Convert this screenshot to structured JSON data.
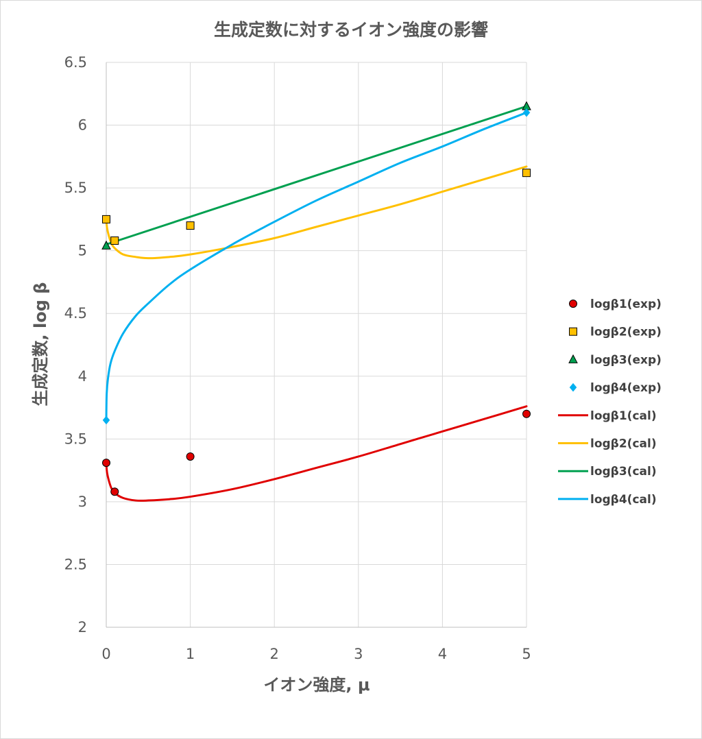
{
  "chart_data": {
    "type": "scatter",
    "title": "生成定数に対するイオン強度の影響",
    "xlabel": "イオン強度, μ",
    "ylabel": "生成定数, log β",
    "xlim": [
      0,
      5
    ],
    "ylim": [
      2,
      6.5
    ],
    "xticks": [
      "0",
      "1",
      "2",
      "3",
      "4",
      "5"
    ],
    "yticks": [
      "2",
      "2.5",
      "3",
      "3.5",
      "4",
      "4.5",
      "5",
      "5.5",
      "6",
      "6.5"
    ],
    "grid": true,
    "legend_position": "right",
    "series": [
      {
        "name": "logβ1(exp)",
        "kind": "marker",
        "marker": "circle",
        "color": "#e00000",
        "x": [
          0,
          0.1,
          1,
          5
        ],
        "y": [
          3.31,
          3.08,
          3.36,
          3.7
        ]
      },
      {
        "name": "logβ2(exp)",
        "kind": "marker",
        "marker": "square",
        "color": "#ffc000",
        "x": [
          0,
          0.1,
          1,
          5
        ],
        "y": [
          5.25,
          5.08,
          5.2,
          5.62
        ]
      },
      {
        "name": "logβ3(exp)",
        "kind": "marker",
        "marker": "triangle",
        "color": "#00a050",
        "x": [
          0,
          5
        ],
        "y": [
          5.04,
          6.15
        ]
      },
      {
        "name": "logβ4(exp)",
        "kind": "marker",
        "marker": "diamond",
        "color": "#00b0f0",
        "x": [
          0,
          5
        ],
        "y": [
          3.65,
          6.1
        ]
      },
      {
        "name": "logβ1(cal)",
        "kind": "line",
        "color": "#e00000",
        "x": [
          0,
          0.01,
          0.03,
          0.06,
          0.1,
          0.2,
          0.35,
          0.5,
          0.75,
          1,
          1.5,
          2,
          2.5,
          3,
          3.5,
          4,
          4.5,
          5
        ],
        "y": [
          3.3,
          3.23,
          3.17,
          3.11,
          3.07,
          3.03,
          3.01,
          3.01,
          3.02,
          3.04,
          3.1,
          3.18,
          3.27,
          3.36,
          3.46,
          3.56,
          3.66,
          3.76
        ]
      },
      {
        "name": "logβ2(cal)",
        "kind": "line",
        "color": "#ffc000",
        "x": [
          0,
          0.01,
          0.03,
          0.06,
          0.1,
          0.2,
          0.35,
          0.5,
          0.75,
          1,
          1.5,
          2,
          2.5,
          3,
          3.5,
          4,
          4.5,
          5
        ],
        "y": [
          5.24,
          5.18,
          5.12,
          5.06,
          5.02,
          4.97,
          4.95,
          4.94,
          4.95,
          4.97,
          5.03,
          5.1,
          5.19,
          5.28,
          5.37,
          5.47,
          5.57,
          5.67
        ]
      },
      {
        "name": "logβ3(cal)",
        "kind": "line",
        "color": "#00a050",
        "x": [
          0,
          5
        ],
        "y": [
          5.05,
          6.15
        ]
      },
      {
        "name": "logβ4(cal)",
        "kind": "line",
        "color": "#00b0f0",
        "x": [
          0,
          0.005,
          0.02,
          0.05,
          0.1,
          0.2,
          0.35,
          0.5,
          0.75,
          1,
          1.5,
          2,
          2.5,
          3,
          3.5,
          4,
          4.5,
          5
        ],
        "y": [
          3.65,
          3.86,
          3.98,
          4.1,
          4.2,
          4.34,
          4.48,
          4.58,
          4.73,
          4.85,
          5.05,
          5.23,
          5.4,
          5.55,
          5.7,
          5.83,
          5.97,
          6.1
        ]
      }
    ]
  }
}
